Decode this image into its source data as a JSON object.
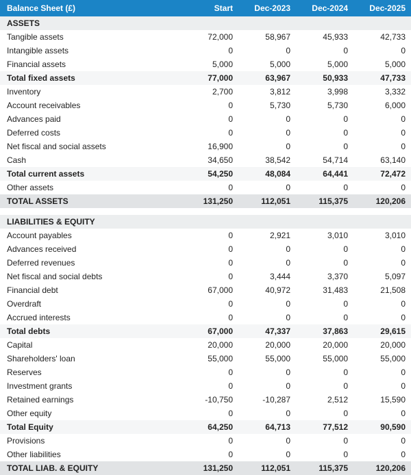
{
  "header": {
    "title": "Balance Sheet (£)",
    "columns": [
      "Start",
      "Dec-2023",
      "Dec-2024",
      "Dec-2025"
    ]
  },
  "rows": [
    {
      "type": "section",
      "label": "ASSETS"
    },
    {
      "type": "data",
      "label": "Tangible assets",
      "v": [
        "72,000",
        "58,967",
        "45,933",
        "42,733"
      ]
    },
    {
      "type": "data",
      "label": "Intangible assets",
      "v": [
        "0",
        "0",
        "0",
        "0"
      ]
    },
    {
      "type": "data",
      "label": "Financial assets",
      "v": [
        "5,000",
        "5,000",
        "5,000",
        "5,000"
      ]
    },
    {
      "type": "subtotal",
      "label": "Total fixed assets",
      "v": [
        "77,000",
        "63,967",
        "50,933",
        "47,733"
      ]
    },
    {
      "type": "data",
      "label": "Inventory",
      "v": [
        "2,700",
        "3,812",
        "3,998",
        "3,332"
      ]
    },
    {
      "type": "data",
      "label": "Account receivables",
      "v": [
        "0",
        "5,730",
        "5,730",
        "6,000"
      ]
    },
    {
      "type": "data",
      "label": "Advances paid",
      "v": [
        "0",
        "0",
        "0",
        "0"
      ]
    },
    {
      "type": "data",
      "label": "Deferred costs",
      "v": [
        "0",
        "0",
        "0",
        "0"
      ]
    },
    {
      "type": "data",
      "label": "Net fiscal and social assets",
      "v": [
        "16,900",
        "0",
        "0",
        "0"
      ]
    },
    {
      "type": "data",
      "label": "Cash",
      "v": [
        "34,650",
        "38,542",
        "54,714",
        "63,140"
      ]
    },
    {
      "type": "subtotal",
      "label": "Total current assets",
      "v": [
        "54,250",
        "48,084",
        "64,441",
        "72,472"
      ]
    },
    {
      "type": "data",
      "label": "Other assets",
      "v": [
        "0",
        "0",
        "0",
        "0"
      ]
    },
    {
      "type": "grand",
      "label": "TOTAL ASSETS",
      "v": [
        "131,250",
        "112,051",
        "115,375",
        "120,206"
      ]
    },
    {
      "type": "blank"
    },
    {
      "type": "section",
      "label": "LIABILITIES & EQUITY"
    },
    {
      "type": "data",
      "label": "Account payables",
      "v": [
        "0",
        "2,921",
        "3,010",
        "3,010"
      ]
    },
    {
      "type": "data",
      "label": "Advances received",
      "v": [
        "0",
        "0",
        "0",
        "0"
      ]
    },
    {
      "type": "data",
      "label": "Deferred revenues",
      "v": [
        "0",
        "0",
        "0",
        "0"
      ]
    },
    {
      "type": "data",
      "label": "Net fiscal and social debts",
      "v": [
        "0",
        "3,444",
        "3,370",
        "5,097"
      ]
    },
    {
      "type": "data",
      "label": "Financial debt",
      "v": [
        "67,000",
        "40,972",
        "31,483",
        "21,508"
      ]
    },
    {
      "type": "data",
      "label": "Overdraft",
      "v": [
        "0",
        "0",
        "0",
        "0"
      ]
    },
    {
      "type": "data",
      "label": "Accrued interests",
      "v": [
        "0",
        "0",
        "0",
        "0"
      ]
    },
    {
      "type": "subtotal",
      "label": "Total debts",
      "v": [
        "67,000",
        "47,337",
        "37,863",
        "29,615"
      ]
    },
    {
      "type": "data",
      "label": "Capital",
      "v": [
        "20,000",
        "20,000",
        "20,000",
        "20,000"
      ]
    },
    {
      "type": "data",
      "label": "Shareholders' loan",
      "v": [
        "55,000",
        "55,000",
        "55,000",
        "55,000"
      ]
    },
    {
      "type": "data",
      "label": "Reserves",
      "v": [
        "0",
        "0",
        "0",
        "0"
      ]
    },
    {
      "type": "data",
      "label": "Investment grants",
      "v": [
        "0",
        "0",
        "0",
        "0"
      ]
    },
    {
      "type": "data",
      "label": "Retained earnings",
      "v": [
        "-10,750",
        "-10,287",
        "2,512",
        "15,590"
      ]
    },
    {
      "type": "data",
      "label": "Other equity",
      "v": [
        "0",
        "0",
        "0",
        "0"
      ]
    },
    {
      "type": "subtotal",
      "label": "Total Equity",
      "v": [
        "64,250",
        "64,713",
        "77,512",
        "90,590"
      ]
    },
    {
      "type": "data",
      "label": "Provisions",
      "v": [
        "0",
        "0",
        "0",
        "0"
      ]
    },
    {
      "type": "data",
      "label": "Other liabilities",
      "v": [
        "0",
        "0",
        "0",
        "0"
      ]
    },
    {
      "type": "grand",
      "label": "TOTAL LIAB. & EQUITY",
      "v": [
        "131,250",
        "112,051",
        "115,375",
        "120,206"
      ]
    }
  ],
  "colors": {
    "header_bg": "#1b84c6",
    "header_fg": "#ffffff",
    "section_bg": "#eceeef",
    "subtotal_bg": "#f5f6f7",
    "grand_bg": "#e1e3e5",
    "text": "#222222"
  }
}
